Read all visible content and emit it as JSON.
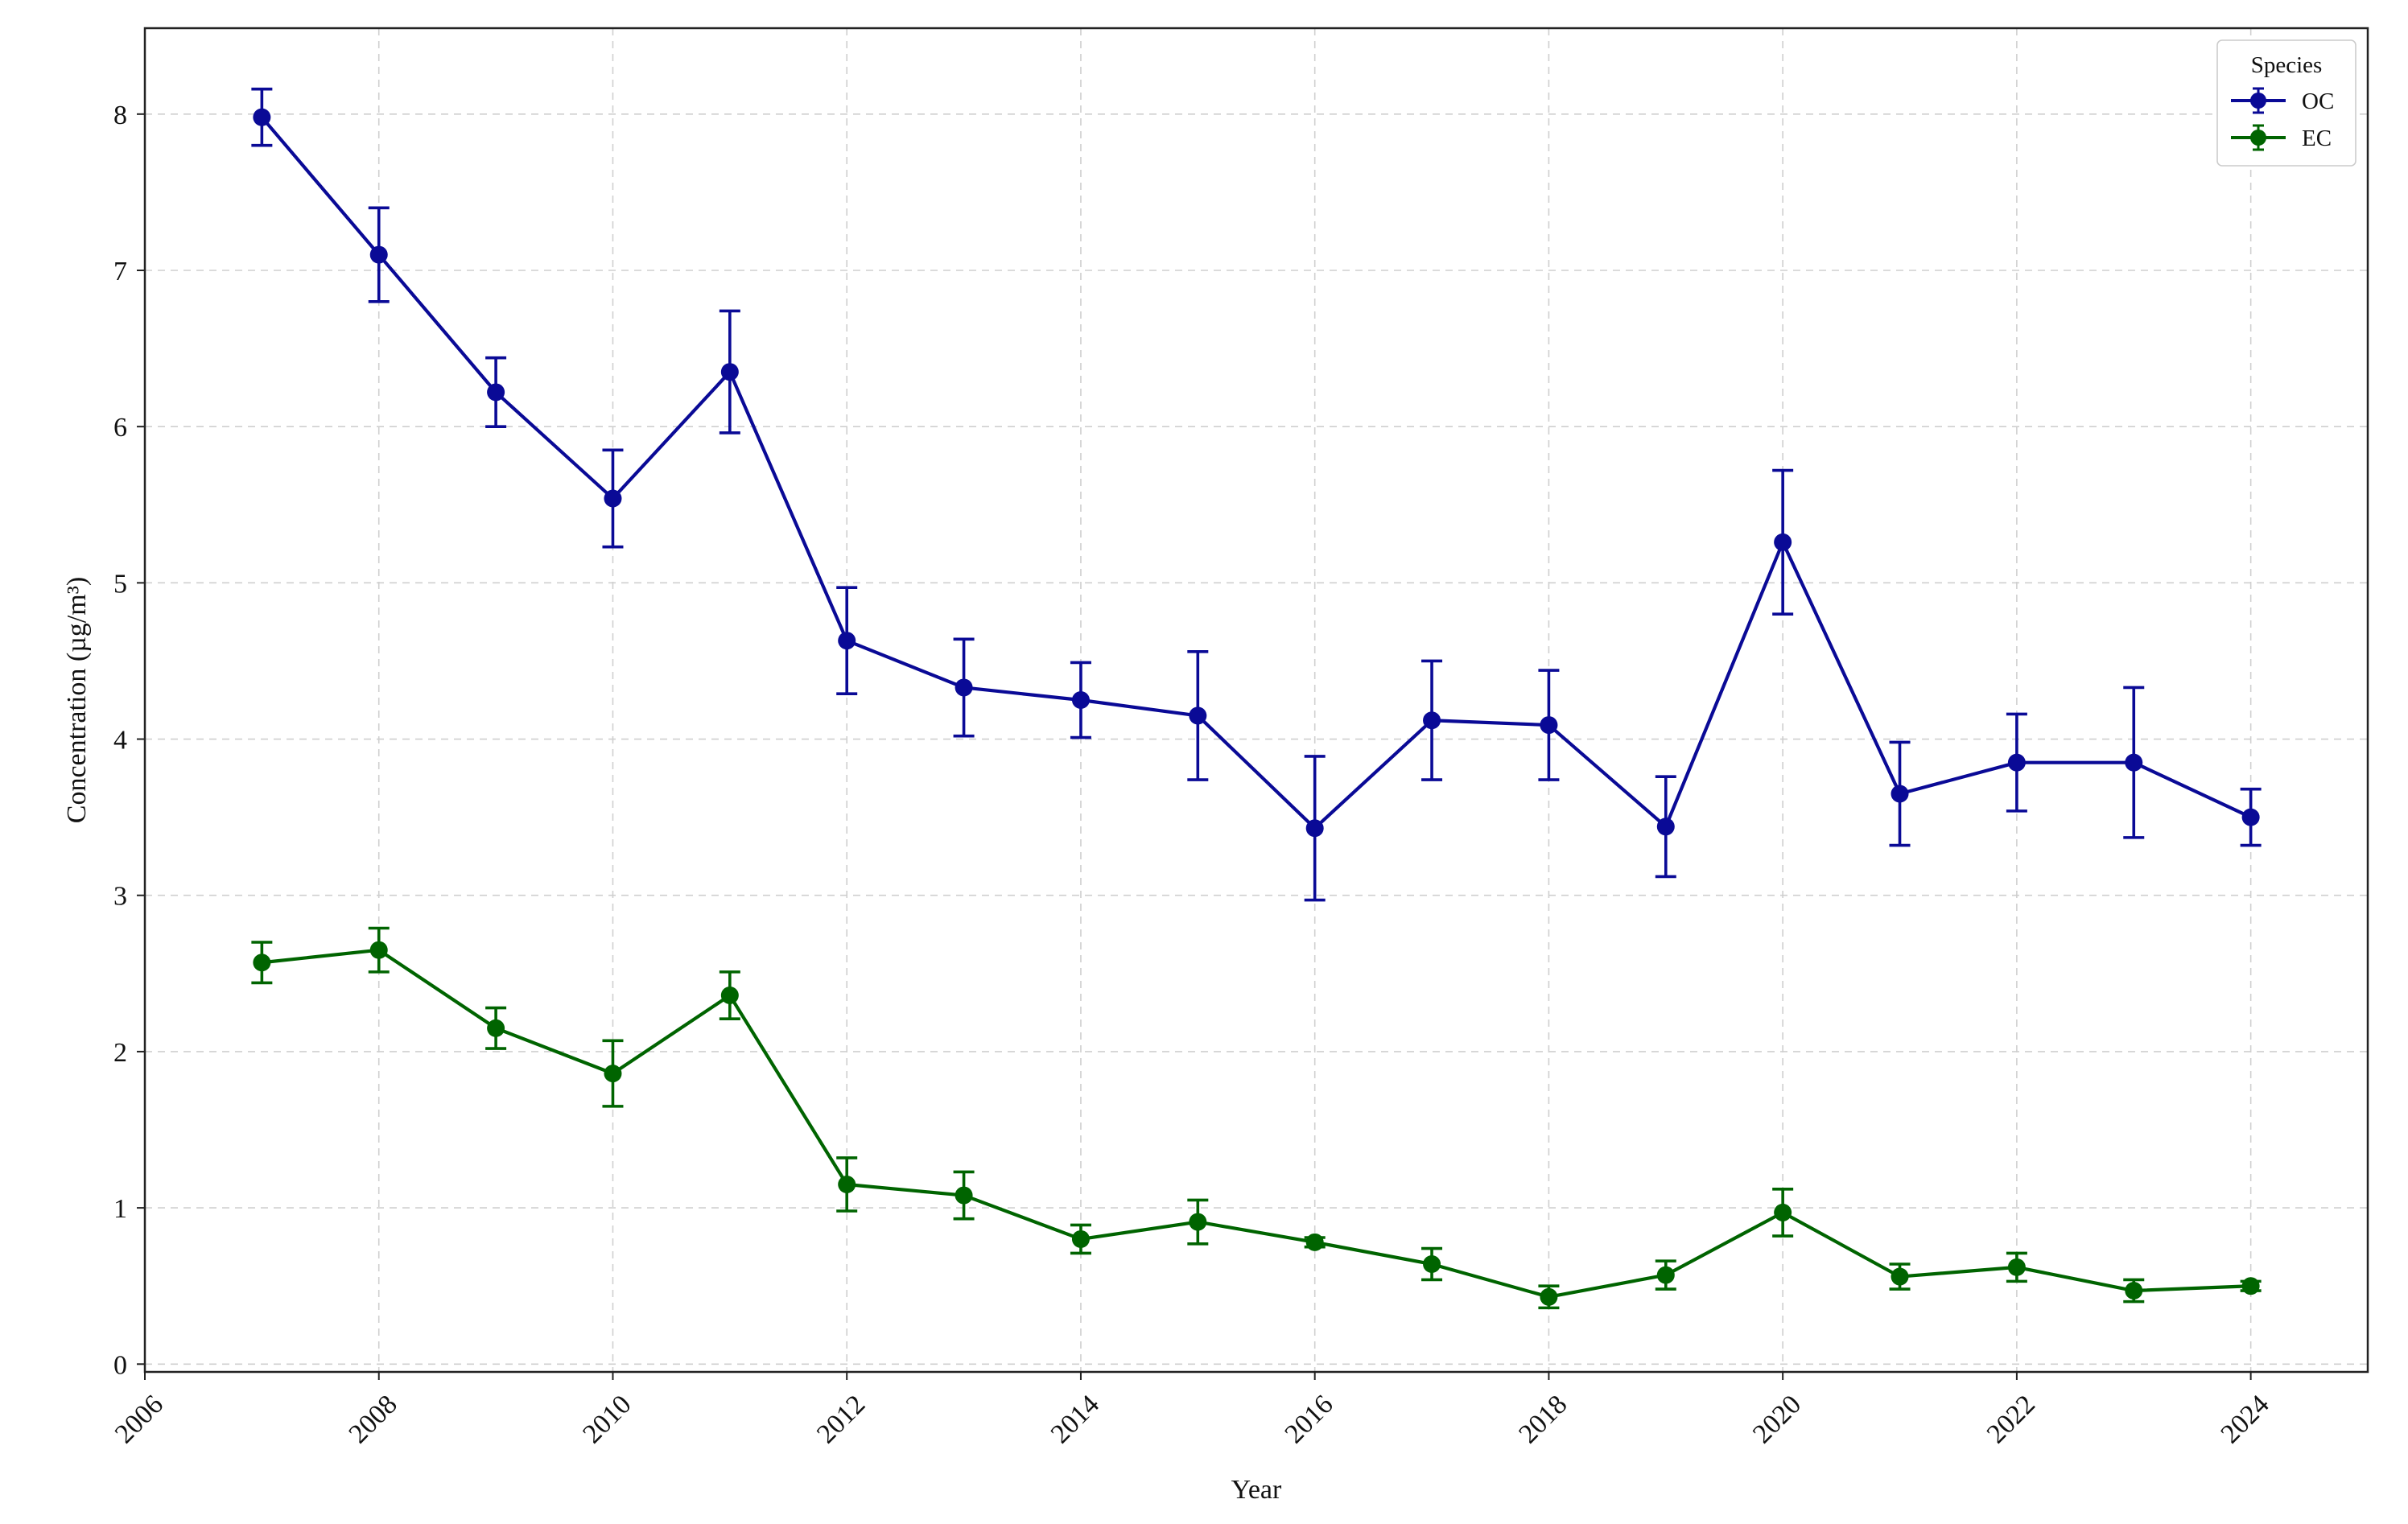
{
  "chart_data": {
    "type": "line",
    "title": "",
    "xlabel": "Year",
    "ylabel": "Concentration (µg/m³)",
    "xlim": [
      2006,
      2025
    ],
    "ylim": [
      -0.05,
      8.55
    ],
    "xticks": [
      2006,
      2008,
      2010,
      2012,
      2014,
      2016,
      2018,
      2020,
      2022,
      2024
    ],
    "yticks": [
      0,
      1,
      2,
      3,
      4,
      5,
      6,
      7,
      8
    ],
    "grid": true,
    "legend": {
      "title": "Species",
      "position": "top-right"
    },
    "x": [
      2007,
      2008,
      2009,
      2010,
      2011,
      2012,
      2013,
      2014,
      2015,
      2016,
      2017,
      2018,
      2019,
      2020,
      2021,
      2022,
      2023,
      2024
    ],
    "series": [
      {
        "name": "OC",
        "color": "#0a0a96",
        "values": [
          7.98,
          7.1,
          6.22,
          5.54,
          6.35,
          4.63,
          4.33,
          4.25,
          4.15,
          3.43,
          4.12,
          4.09,
          3.44,
          5.26,
          3.65,
          3.85,
          3.85,
          3.5
        ],
        "errors": [
          0.18,
          0.3,
          0.22,
          0.31,
          0.39,
          0.34,
          0.31,
          0.24,
          0.41,
          0.46,
          0.38,
          0.35,
          0.32,
          0.46,
          0.33,
          0.31,
          0.48,
          0.18
        ]
      },
      {
        "name": "EC",
        "color": "#006400",
        "values": [
          2.57,
          2.65,
          2.15,
          1.86,
          2.36,
          1.15,
          1.08,
          0.8,
          0.91,
          0.78,
          0.64,
          0.43,
          0.57,
          0.97,
          0.56,
          0.62,
          0.47,
          0.5
        ],
        "errors": [
          0.13,
          0.14,
          0.13,
          0.21,
          0.15,
          0.17,
          0.15,
          0.09,
          0.14,
          0.03,
          0.1,
          0.07,
          0.09,
          0.15,
          0.08,
          0.09,
          0.07,
          0.03
        ]
      }
    ]
  }
}
